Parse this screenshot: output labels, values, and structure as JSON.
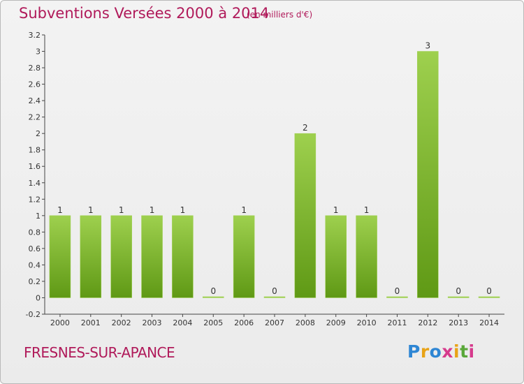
{
  "header": {
    "title": "Subventions Versées 2000 à 2014",
    "subtitle": "(en milliers d'€)"
  },
  "footer": {
    "commune": "FRESNES-SUR-APANCE",
    "logo_letters": [
      "P",
      "r",
      "o",
      "x",
      "i",
      "t",
      "i"
    ]
  },
  "colors": {
    "title": "#b01a5a",
    "bar_light": "#9ed04e",
    "bar_dark": "#5f9915",
    "logo": [
      "#2e86d4",
      "#e8a317",
      "#2e86d4",
      "#d63a8c",
      "#e8a317",
      "#5aa83a",
      "#d63a8c"
    ]
  },
  "chart_data": {
    "type": "bar",
    "categories": [
      "2000",
      "2001",
      "2002",
      "2003",
      "2004",
      "2005",
      "2006",
      "2007",
      "2008",
      "2009",
      "2010",
      "2011",
      "2012",
      "2013",
      "2014"
    ],
    "values": [
      1,
      1,
      1,
      1,
      1,
      0,
      1,
      0,
      2,
      1,
      1,
      0,
      3,
      0,
      0
    ],
    "data_labels": [
      "1",
      "1",
      "1",
      "1",
      "1",
      "0",
      "1",
      "0",
      "2",
      "1",
      "1",
      "0",
      "3",
      "0",
      "0"
    ],
    "y_ticks": [
      "-0.2",
      "0",
      "0.2",
      "0.4",
      "0.6",
      "0.8",
      "1",
      "1.2",
      "1.4",
      "1.6",
      "1.8",
      "2",
      "2.2",
      "2.4",
      "2.6",
      "2.8",
      "3",
      "3.2"
    ],
    "ylim": [
      -0.2,
      3.2
    ],
    "grid": false,
    "title": "Subventions Versées 2000 à 2014",
    "xlabel": "",
    "ylabel": ""
  }
}
